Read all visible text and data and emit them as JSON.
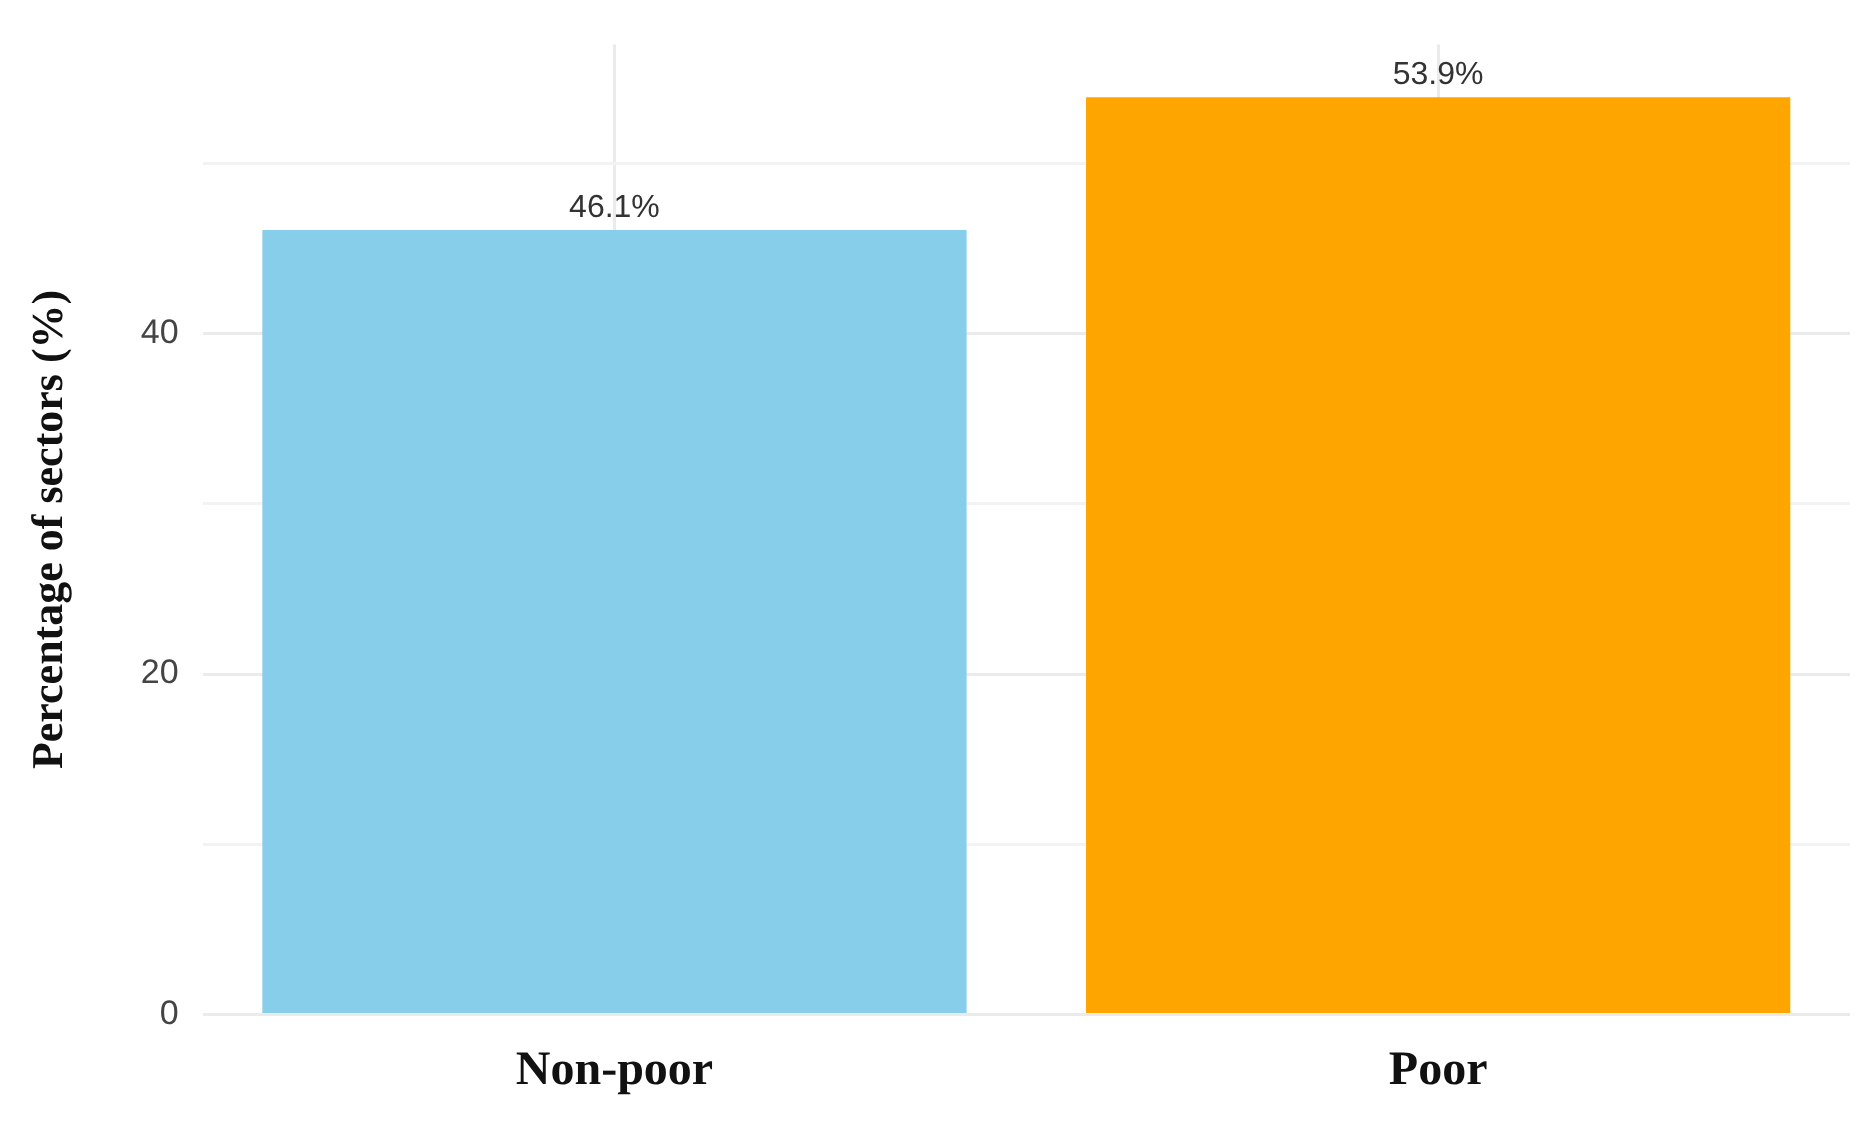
{
  "chart_data": {
    "type": "bar",
    "ylabel": "Percentage of sectors (%)",
    "categories": [
      "Non-poor",
      "Poor"
    ],
    "values": [
      46.1,
      53.9
    ],
    "colors": [
      "#87ceeb",
      "#ffa500"
    ],
    "value_labels": [
      "46.1%",
      "53.9%"
    ],
    "ylim": [
      0,
      57
    ],
    "yticks": [
      0,
      {
        "value": 10,
        "label": null
      },
      20,
      {
        "value": 30,
        "label": null
      },
      40,
      {
        "value": 50,
        "label": null
      }
    ],
    "grid": true,
    "legend": false
  }
}
